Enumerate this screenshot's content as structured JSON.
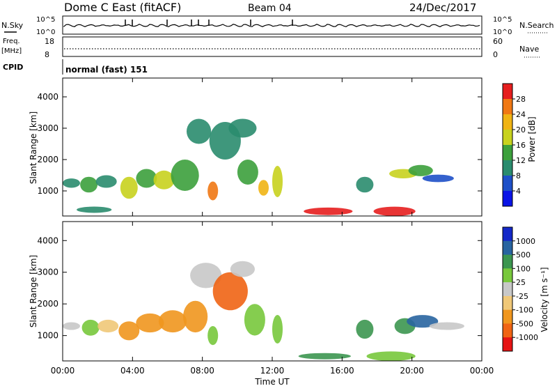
{
  "header": {
    "station": "Dome C East (fitACF)",
    "beam": "Beam 04",
    "date": "24/Dec/2017"
  },
  "top_panels": {
    "nsky_label": "N.Sky",
    "nsky_ticks": [
      "10^5",
      "10^0"
    ],
    "nsearch_label": "N.Search",
    "nsearch_ticks": [
      "10^5",
      "10^0"
    ],
    "freq_label_1": "Freq.",
    "freq_label_2": "[MHz]",
    "freq_ticks": [
      "18",
      "8"
    ],
    "nave_label": "Nave",
    "nave_ticks": [
      "60",
      "0"
    ],
    "cpid_label": "CPID",
    "cpid_value": "normal (fast) 151"
  },
  "chart_data": [
    {
      "type": "heatmap",
      "quantity": "power",
      "xlabel": "",
      "ylabel": "Slant Range [km]",
      "x_ticks": [
        "00:00",
        "04:00",
        "08:00",
        "12:00",
        "16:00",
        "20:00",
        "00:00"
      ],
      "y_ticks": [
        "1000",
        "2000",
        "3000",
        "4000"
      ],
      "ylim": [
        200,
        4600
      ],
      "colorbar_label": "Power [dB]",
      "colorbar_ticks": [
        "4",
        "8",
        "12",
        "16",
        "20",
        "24",
        "28"
      ],
      "colorbar_colors": [
        "#0a14e6",
        "#1e50c8",
        "#2a8c6e",
        "#3ca03c",
        "#c8d21e",
        "#f0b414",
        "#f07814",
        "#e61e1e"
      ],
      "blobs": [
        {
          "t": 0.5,
          "r": 1250,
          "dt": 0.5,
          "dr": 150,
          "level": 2
        },
        {
          "t": 1.5,
          "r": 1200,
          "dt": 0.5,
          "dr": 250,
          "level": 3
        },
        {
          "t": 2.5,
          "r": 1300,
          "dt": 0.6,
          "dr": 200,
          "level": 2
        },
        {
          "t": 3.8,
          "r": 1100,
          "dt": 0.5,
          "dr": 350,
          "level": 4
        },
        {
          "t": 4.8,
          "r": 1400,
          "dt": 0.6,
          "dr": 300,
          "level": 3
        },
        {
          "t": 5.8,
          "r": 1350,
          "dt": 0.6,
          "dr": 300,
          "level": 4
        },
        {
          "t": 7.0,
          "r": 1500,
          "dt": 0.8,
          "dr": 500,
          "level": 3
        },
        {
          "t": 7.8,
          "r": 2900,
          "dt": 0.7,
          "dr": 400,
          "level": 2
        },
        {
          "t": 8.6,
          "r": 1000,
          "dt": 0.3,
          "dr": 300,
          "level": 6
        },
        {
          "t": 9.3,
          "r": 2600,
          "dt": 0.9,
          "dr": 600,
          "level": 2
        },
        {
          "t": 10.3,
          "r": 3000,
          "dt": 0.8,
          "dr": 300,
          "level": 2
        },
        {
          "t": 10.6,
          "r": 1600,
          "dt": 0.6,
          "dr": 400,
          "level": 3
        },
        {
          "t": 11.5,
          "r": 1100,
          "dt": 0.3,
          "dr": 250,
          "level": 5
        },
        {
          "t": 12.3,
          "r": 1300,
          "dt": 0.3,
          "dr": 500,
          "level": 4
        },
        {
          "t": 1.8,
          "r": 400,
          "dt": 1.0,
          "dr": 100,
          "level": 2
        },
        {
          "t": 15.2,
          "r": 350,
          "dt": 1.4,
          "dr": 120,
          "level": 7
        },
        {
          "t": 17.3,
          "r": 1200,
          "dt": 0.5,
          "dr": 250,
          "level": 2
        },
        {
          "t": 19.0,
          "r": 350,
          "dt": 1.2,
          "dr": 150,
          "level": 7
        },
        {
          "t": 19.5,
          "r": 1550,
          "dt": 0.8,
          "dr": 150,
          "level": 4
        },
        {
          "t": 20.5,
          "r": 1650,
          "dt": 0.7,
          "dr": 180,
          "level": 3
        },
        {
          "t": 21.5,
          "r": 1400,
          "dt": 0.9,
          "dr": 120,
          "level": 1
        }
      ]
    },
    {
      "type": "heatmap",
      "quantity": "velocity",
      "xlabel": "Time UT",
      "ylabel": "Slant Range [km]",
      "x_ticks": [
        "00:00",
        "04:00",
        "08:00",
        "12:00",
        "16:00",
        "20:00",
        "00:00"
      ],
      "y_ticks": [
        "1000",
        "2000",
        "3000",
        "4000"
      ],
      "ylim": [
        200,
        4600
      ],
      "colorbar_label": "Velocity [m s⁻¹]",
      "colorbar_ticks": [
        "1000",
        "500",
        "100",
        "25",
        "-25",
        "-100",
        "-500",
        "-1000"
      ],
      "colorbar_colors": [
        "#1428c8",
        "#2864a0",
        "#3c9650",
        "#78c83c",
        "#c8c8c8",
        "#f0c878",
        "#f0961e",
        "#f06414",
        "#e61414"
      ],
      "blobs": [
        {
          "t": 0.5,
          "r": 1300,
          "dt": 0.5,
          "dr": 120,
          "level": 4
        },
        {
          "t": 1.6,
          "r": 1250,
          "dt": 0.5,
          "dr": 250,
          "level": 3
        },
        {
          "t": 2.6,
          "r": 1300,
          "dt": 0.6,
          "dr": 200,
          "level": 5
        },
        {
          "t": 3.8,
          "r": 1150,
          "dt": 0.6,
          "dr": 300,
          "level": 6
        },
        {
          "t": 5.0,
          "r": 1400,
          "dt": 0.8,
          "dr": 300,
          "level": 6
        },
        {
          "t": 6.3,
          "r": 1450,
          "dt": 0.8,
          "dr": 350,
          "level": 6
        },
        {
          "t": 7.6,
          "r": 1600,
          "dt": 0.7,
          "dr": 500,
          "level": 6
        },
        {
          "t": 8.2,
          "r": 2900,
          "dt": 0.9,
          "dr": 400,
          "level": 4
        },
        {
          "t": 8.6,
          "r": 1000,
          "dt": 0.3,
          "dr": 300,
          "level": 3
        },
        {
          "t": 9.6,
          "r": 2400,
          "dt": 1.0,
          "dr": 600,
          "level": 7
        },
        {
          "t": 10.3,
          "r": 3100,
          "dt": 0.7,
          "dr": 250,
          "level": 4
        },
        {
          "t": 11.0,
          "r": 1500,
          "dt": 0.6,
          "dr": 500,
          "level": 3
        },
        {
          "t": 12.3,
          "r": 1200,
          "dt": 0.3,
          "dr": 450,
          "level": 3
        },
        {
          "t": 15.0,
          "r": 350,
          "dt": 1.5,
          "dr": 100,
          "level": 2
        },
        {
          "t": 17.3,
          "r": 1200,
          "dt": 0.5,
          "dr": 300,
          "level": 2
        },
        {
          "t": 18.8,
          "r": 350,
          "dt": 1.4,
          "dr": 150,
          "level": 3
        },
        {
          "t": 19.6,
          "r": 1300,
          "dt": 0.6,
          "dr": 250,
          "level": 2
        },
        {
          "t": 20.6,
          "r": 1450,
          "dt": 0.9,
          "dr": 200,
          "level": 1
        },
        {
          "t": 22.0,
          "r": 1300,
          "dt": 1.0,
          "dr": 120,
          "level": 4
        }
      ]
    }
  ]
}
